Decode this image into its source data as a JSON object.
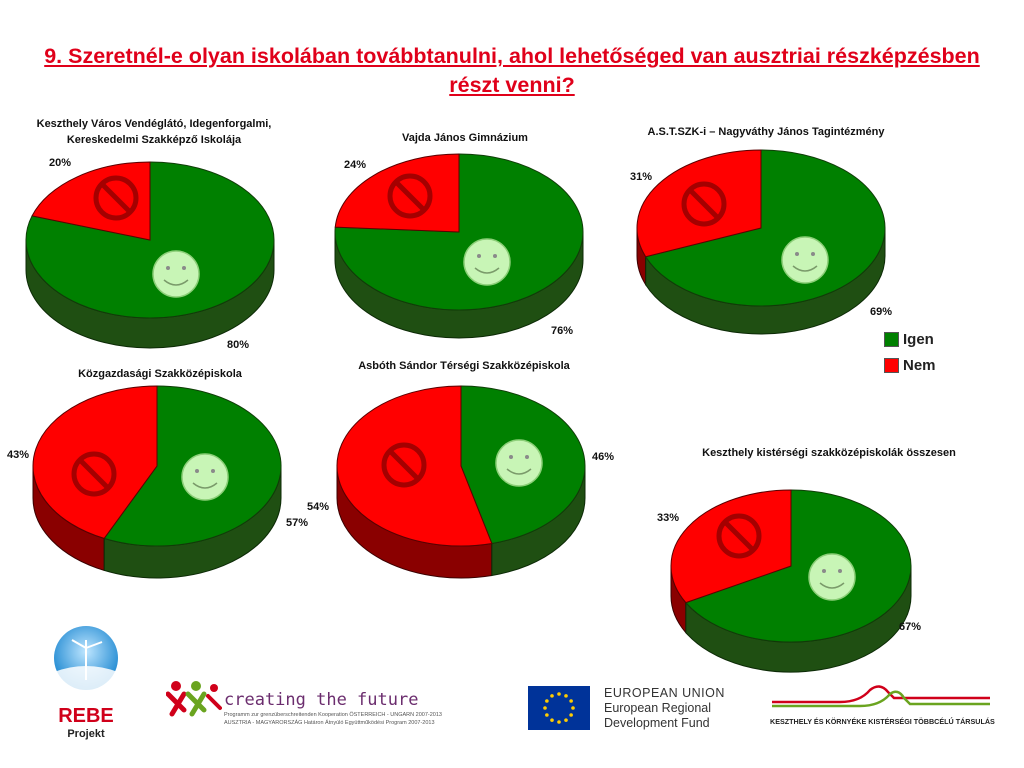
{
  "title": "9. Szeretnél-e olyan iskolában továbbtanulni, ahol lehetőséged van ausztriai részképzésben részt venni?",
  "colors": {
    "igen": "#008000",
    "igen_dark": "#1f4f12",
    "nem": "#ff0000",
    "nem_dark": "#8a0000",
    "title": "#e0001a"
  },
  "legend": {
    "items": [
      {
        "label": "Igen",
        "color": "#008000"
      },
      {
        "label": "Nem",
        "color": "#ff0000"
      }
    ]
  },
  "chart_data": [
    {
      "type": "pie",
      "title": "Keszthely Város Vendéglátó, Idegenforgalmi, Kereskedelmi Szakképző Iskolája",
      "categories": [
        "Igen",
        "Nem"
      ],
      "values": [
        80,
        20
      ],
      "labels": [
        "80%",
        "20%"
      ]
    },
    {
      "type": "pie",
      "title": "Vajda János Gimnázium",
      "categories": [
        "Igen",
        "Nem"
      ],
      "values": [
        76,
        24
      ],
      "labels": [
        "76%",
        "24%"
      ]
    },
    {
      "type": "pie",
      "title": "A.S.T.SZK-i – Nagyváthy János Tagintézmény",
      "categories": [
        "Igen",
        "Nem"
      ],
      "values": [
        69,
        31
      ],
      "labels": [
        "69%",
        "31%"
      ]
    },
    {
      "type": "pie",
      "title": "Közgazdasági Szakközépiskola",
      "categories": [
        "Igen",
        "Nem"
      ],
      "values": [
        57,
        43
      ],
      "labels": [
        "57%",
        "43%"
      ]
    },
    {
      "type": "pie",
      "title": "Asbóth Sándor Térségi Szakközépiskola",
      "categories": [
        "Igen",
        "Nem"
      ],
      "values": [
        46,
        54
      ],
      "labels": [
        "46%",
        "54%"
      ]
    },
    {
      "type": "pie",
      "title": "Keszthely kistérségi szakközépiskolák összesen",
      "categories": [
        "Igen",
        "Nem"
      ],
      "values": [
        67,
        33
      ],
      "labels": [
        "67%",
        "33%"
      ]
    }
  ],
  "footer": {
    "rebe_line1": "REBE",
    "rebe_line2": "Projekt",
    "creating_title": "creating the future",
    "creating_sub1": "Programm zur grenzüberschreitenden Kooperation ÖSTERREICH - UNGARN 2007-2013",
    "creating_sub2": "AUSZTRIA - MAGYARORSZÁG Határon Átnyúló Együttműködési Program 2007-2013",
    "eu_line1": "EUROPEAN UNION",
    "eu_line2": "European Regional",
    "eu_line3": "Development Fund",
    "kesz_text": "KESZTHELY ÉS KÖRNYÉKE KISTÉRSÉGI TÖBBCÉLÚ TÁRSULÁS"
  }
}
